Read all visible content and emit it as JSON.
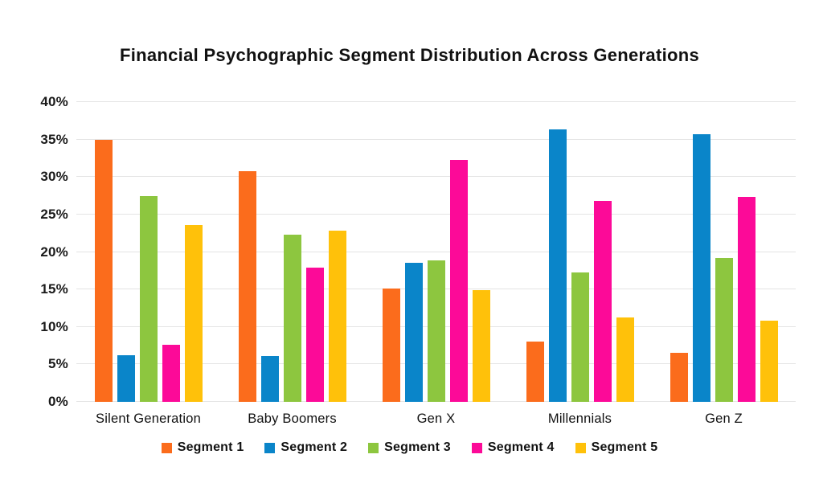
{
  "title": "Financial Psychographic Segment Distribution Across Generations",
  "chart_data": {
    "type": "bar",
    "title": "Financial Psychographic Segment Distribution Across Generations",
    "categories": [
      "Silent Generation",
      "Baby Boomers",
      "Gen X",
      "Millennials",
      "Gen Z"
    ],
    "series": [
      {
        "name": "Segment 1",
        "color": "#FB6C1C",
        "values": [
          35.0,
          30.8,
          15.1,
          8.1,
          6.6
        ]
      },
      {
        "name": "Segment 2",
        "color": "#0A85C9",
        "values": [
          6.2,
          6.1,
          18.6,
          36.4,
          35.7
        ]
      },
      {
        "name": "Segment 3",
        "color": "#8DC63F",
        "values": [
          27.5,
          22.3,
          18.9,
          17.3,
          19.2
        ]
      },
      {
        "name": "Segment 4",
        "color": "#FC0A98",
        "values": [
          7.6,
          17.9,
          32.3,
          26.8,
          27.3
        ]
      },
      {
        "name": "Segment 5",
        "color": "#FFC10A",
        "values": [
          23.6,
          22.8,
          14.9,
          11.3,
          10.8
        ]
      }
    ],
    "xlabel": "",
    "ylabel": "",
    "ylim": [
      0,
      40
    ],
    "ytick_step": 5,
    "ytick_labels": [
      "0%",
      "5%",
      "10%",
      "15%",
      "20%",
      "25%",
      "30%",
      "35%",
      "40%"
    ],
    "grid": true,
    "legend_position": "bottom"
  },
  "colors": {
    "background": "#ffffff",
    "gridline": "#e4e4e4",
    "text": "#1a1a1a"
  }
}
